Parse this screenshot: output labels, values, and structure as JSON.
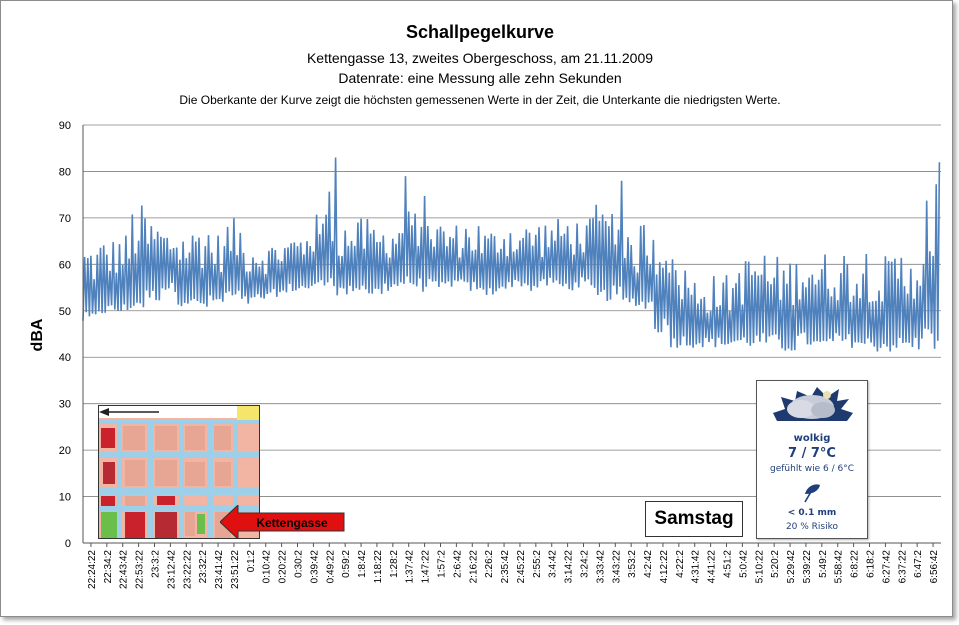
{
  "chart_data": {
    "type": "line",
    "title": "Schallpegelkurve",
    "subtitles": [
      "Kettengasse 13, zweites Obergeschoss, am 21.11.2009",
      "Datenrate: eine Messung alle zehn Sekunden",
      "Die Oberkante der Kurve zeigt die höchsten gemessenen Werte  in der Zeit, die Unterkante  die niedrigsten Werte."
    ],
    "ylabel": "dBA",
    "xlabel": "",
    "ylim": [
      0,
      90
    ],
    "y_ticks": [
      0,
      10,
      20,
      30,
      40,
      50,
      60,
      70,
      80,
      90
    ],
    "grid": true,
    "x_ticks": [
      "22:24:22",
      "22:34:2",
      "22:43:42",
      "22:53:22",
      "23:3:2",
      "23:12:42",
      "23:22:22",
      "23:32:2",
      "23:41:42",
      "23:51:22",
      "0:1:2",
      "0:10:42",
      "0:20:22",
      "0:30:2",
      "0:39:42",
      "0:49:22",
      "0:59:2",
      "1:8:42",
      "1:18:22",
      "1:28:2",
      "1:37:42",
      "1:47:22",
      "1:57:2",
      "2:6:42",
      "2:16:22",
      "2:26:2",
      "2:35:42",
      "2:45:22",
      "2:55:2",
      "3:4:42",
      "3:14:22",
      "3:24:2",
      "3:33:42",
      "3:43:22",
      "3:53:2",
      "4:2:42",
      "4:12:22",
      "4:22:2",
      "4:31:42",
      "4:41:22",
      "4:51:2",
      "5:0:42",
      "5:10:22",
      "5:20:2",
      "5:29:42",
      "5:39:22",
      "5:49:2",
      "5:58:42",
      "6:8:22",
      "6:18:2",
      "6:27:42",
      "6:37:22",
      "6:47:2",
      "6:56:42"
    ],
    "series": [
      {
        "color": "#4f81bd",
        "envelope_by_tick": {
          "lower": [
            47,
            49,
            49,
            50,
            52,
            54,
            51,
            50,
            51,
            52,
            51,
            52,
            53,
            54,
            54,
            55,
            53,
            54,
            53,
            54,
            55,
            54,
            54,
            55,
            54,
            53,
            54,
            55,
            54,
            55,
            54,
            55,
            53,
            52,
            51,
            50,
            45,
            42,
            42,
            42,
            42,
            42,
            42,
            42,
            41,
            42,
            41,
            42,
            42,
            41,
            41,
            41,
            41,
            41
          ],
          "upper": [
            65,
            66,
            67,
            73,
            70,
            68,
            68,
            70,
            67,
            70,
            66,
            65,
            66,
            67,
            71,
            77,
            70,
            70,
            69,
            70,
            72,
            75,
            70,
            69,
            70,
            68,
            70,
            69,
            70,
            70,
            71,
            70,
            73,
            75,
            66,
            70,
            71,
            62,
            58,
            58,
            58,
            62,
            64,
            62,
            62,
            65,
            63,
            64,
            63,
            65,
            62,
            64,
            66,
            82
          ],
          "peaks": [
            {
              "x": "0:49:22",
              "y": 83
            },
            {
              "x": "1:37:42",
              "y": 79
            },
            {
              "x": "3:43:22",
              "y": 78
            },
            {
              "x": "6:56:42",
              "y": 82
            }
          ]
        }
      }
    ]
  },
  "annotations": {
    "map_label": "Kettengasse",
    "day_label": "Samstag"
  },
  "weather": {
    "condition": "wolkig",
    "temperature": "7 / 7°C",
    "feels_like": "gefühlt wie 6 / 6°C",
    "precipitation": "< 0.1 mm",
    "risk": "20 % Risiko"
  },
  "colors": {
    "line": "#4f81bd",
    "arrow": "#e01010",
    "grid": "#808080"
  }
}
